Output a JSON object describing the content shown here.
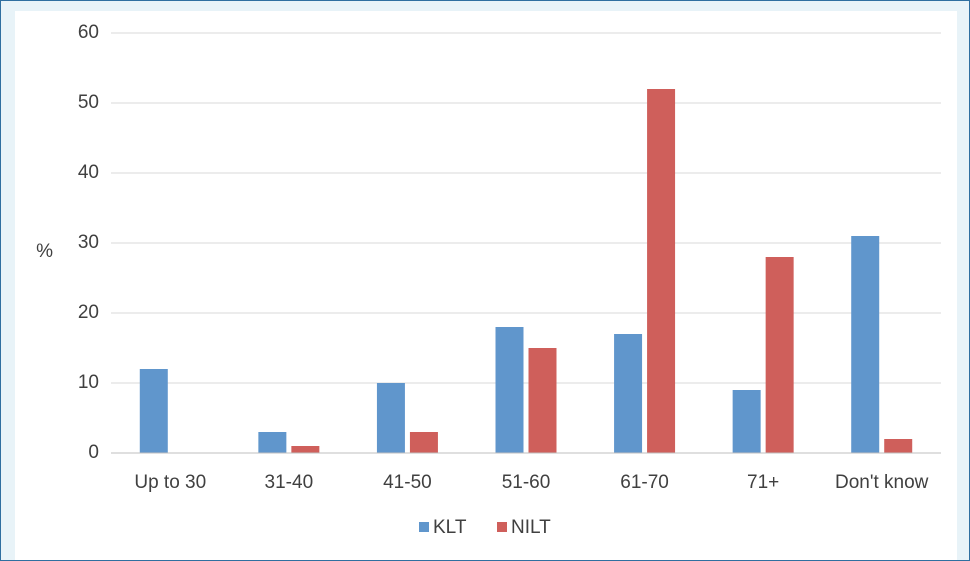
{
  "chart_data": {
    "type": "bar",
    "title": "",
    "xlabel": "",
    "ylabel": "%",
    "ylim": [
      0,
      60
    ],
    "yticks": [
      0,
      10,
      20,
      30,
      40,
      50,
      60
    ],
    "grid": true,
    "legend_position": "bottom",
    "categories": [
      "Up to 30",
      "31-40",
      "41-50",
      "51-60",
      "61-70",
      "71+",
      "Don't know"
    ],
    "series": [
      {
        "name": "KLT",
        "color": "#6096cc",
        "values": [
          12,
          3,
          10,
          18,
          17,
          9,
          31
        ]
      },
      {
        "name": "NILT",
        "color": "#cf5f5b",
        "values": [
          0,
          1,
          3,
          15,
          52,
          28,
          2
        ]
      }
    ]
  }
}
